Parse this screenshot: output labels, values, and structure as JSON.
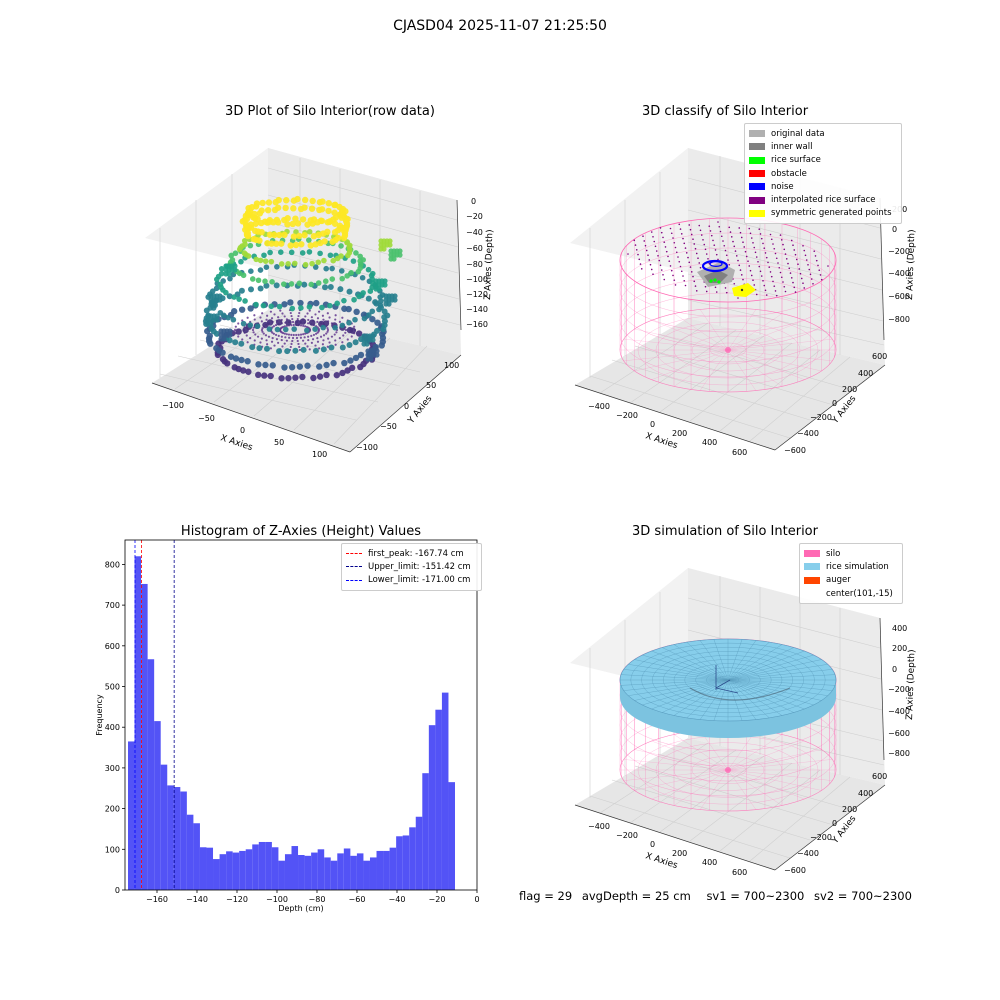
{
  "suptitle": "CJASD04 2025-11-07 21:25:50",
  "plots": {
    "p1": {
      "title": "3D Plot of Silo Interior(row data)",
      "xlabel": "X Axies",
      "ylabel": "Y Axies",
      "zlabel": "Z Axies (Depth)",
      "xticks": [
        "−100",
        "−50",
        "0",
        "50",
        "100"
      ],
      "yticks": [
        "100",
        "50",
        "0",
        "−50",
        "−100"
      ],
      "zticks": [
        "0",
        "−20",
        "−40",
        "−60",
        "−80",
        "−100",
        "−120",
        "−140",
        "−160"
      ]
    },
    "p2": {
      "title": "3D classify of Silo Interior",
      "xlabel": "X Axies",
      "ylabel": "Y Axies",
      "zlabel": "Z Axies (Depth)",
      "xticks": [
        "−400",
        "−200",
        "0",
        "200",
        "400",
        "600"
      ],
      "yticks": [
        "600",
        "400",
        "200",
        "0",
        "−200",
        "−400",
        "−600"
      ],
      "zticks": [
        "200",
        "0",
        "−200",
        "−400",
        "−600",
        "−800"
      ],
      "legend": [
        {
          "label": "original data",
          "color": "#b0b0b0"
        },
        {
          "label": "inner wall",
          "color": "#808080"
        },
        {
          "label": "rice surface",
          "color": "#00ff00"
        },
        {
          "label": "obstacle",
          "color": "#ff0000"
        },
        {
          "label": "noise",
          "color": "#0000ff"
        },
        {
          "label": "interpolated rice surface",
          "color": "#800080"
        },
        {
          "label": "symmetric generated points",
          "color": "#ffff00"
        }
      ]
    },
    "p4": {
      "title": "3D simulation of Silo Interior",
      "xlabel": "X Axies",
      "ylabel": "Y Axies",
      "zlabel": "Z Axies (Depth)",
      "xticks": [
        "−400",
        "−200",
        "0",
        "200",
        "400",
        "600"
      ],
      "yticks": [
        "600",
        "400",
        "200",
        "0",
        "−200",
        "−400",
        "−600"
      ],
      "zticks": [
        "400",
        "200",
        "0",
        "−200",
        "−400",
        "−600",
        "−800"
      ],
      "legend": [
        {
          "label": "silo",
          "color": "#ff69b4"
        },
        {
          "label": "rice simulation",
          "color": "#87ceeb"
        },
        {
          "label": "auger",
          "color": "#ff4500"
        },
        {
          "label": "center(101,-15)",
          "color": ""
        }
      ]
    }
  },
  "chart_data": [
    {
      "type": "bar",
      "title": "Histogram of Z-Axies (Height) Values",
      "xlabel": "Depth (cm)",
      "ylabel": "Frequency",
      "xlim": [
        -176,
        0
      ],
      "ylim": [
        0,
        860
      ],
      "xticks": [
        -160,
        -140,
        -120,
        -100,
        -80,
        -60,
        -40,
        -20,
        0
      ],
      "yticks": [
        0,
        100,
        200,
        300,
        400,
        500,
        600,
        700,
        800
      ],
      "bar_color": "#4a4af5",
      "bins": {
        "start": -174.5,
        "width": 3.27,
        "values": [
          365,
          820,
          752,
          567,
          415,
          308,
          257,
          253,
          242,
          185,
          164,
          105,
          104,
          76,
          88,
          95,
          92,
          96,
          100,
          112,
          118,
          118,
          105,
          72,
          88,
          108,
          86,
          84,
          92,
          100,
          80,
          72,
          90,
          102,
          84,
          90,
          72,
          80,
          96,
          96,
          104,
          132,
          134,
          154,
          180,
          287,
          405,
          443,
          485,
          265
        ]
      },
      "lines": [
        {
          "label": "first_peak: -167.74 cm",
          "x": -167.74,
          "color": "#ff0000"
        },
        {
          "label": "Upper_limit: -151.42 cm",
          "x": -151.42,
          "color": "#00008b"
        },
        {
          "label": "Lower_limit: -171.00 cm",
          "x": -171.0,
          "color": "#0000ff"
        }
      ],
      "legend_position": "upper right"
    }
  ],
  "footer": {
    "flag": "flag = 29",
    "avg": "avgDepth = 25 cm",
    "sv1": "sv1 = 700~2300",
    "sv2": "sv2 = 700~2300"
  }
}
